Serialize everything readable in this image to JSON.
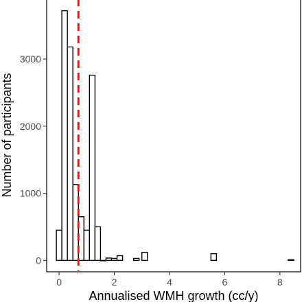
{
  "chart_data": {
    "type": "histogram",
    "xlabel": "Annualised WMH growth (cc/y)",
    "ylabel": "Number of participants",
    "xlim": [
      -0.45,
      8.75
    ],
    "ylim": [
      -170,
      3900
    ],
    "x_ticks": [
      0,
      2,
      4,
      6,
      8
    ],
    "y_ticks": [
      0,
      1000,
      2000,
      3000
    ],
    "bin_width": 0.2,
    "bins": [
      {
        "x0": -0.1,
        "x1": 0.1,
        "count": 450
      },
      {
        "x0": 0.1,
        "x1": 0.3,
        "count": 3720
      },
      {
        "x0": 0.3,
        "x1": 0.5,
        "count": 3180
      },
      {
        "x0": 0.5,
        "x1": 0.7,
        "count": 1130
      },
      {
        "x0": 0.7,
        "x1": 0.9,
        "count": 650
      },
      {
        "x0": 0.9,
        "x1": 1.1,
        "count": 450
      },
      {
        "x0": 1.1,
        "x1": 1.3,
        "count": 2760
      },
      {
        "x0": 1.3,
        "x1": 1.5,
        "count": 500
      },
      {
        "x0": 1.5,
        "x1": 1.7,
        "count": 0
      },
      {
        "x0": 1.7,
        "x1": 1.9,
        "count": 35
      },
      {
        "x0": 1.9,
        "x1": 2.1,
        "count": 30
      },
      {
        "x0": 2.1,
        "x1": 2.3,
        "count": 70
      },
      {
        "x0": 2.7,
        "x1": 2.9,
        "count": 30
      },
      {
        "x0": 3.0,
        "x1": 3.2,
        "count": 120
      },
      {
        "x0": 5.5,
        "x1": 5.7,
        "count": 100
      },
      {
        "x0": 8.3,
        "x1": 8.5,
        "count": 10
      }
    ],
    "reference_line": {
      "x": 0.7,
      "color": "#e41a1c",
      "style": "dashed"
    },
    "bar_fill": "#ffffff",
    "bar_stroke": "#000000",
    "grid": false
  }
}
